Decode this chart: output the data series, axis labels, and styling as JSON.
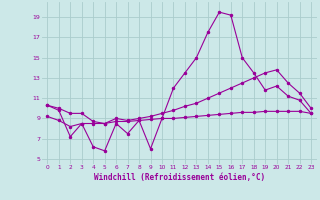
{
  "background_color": "#cce8e8",
  "grid_color": "#aacccc",
  "line_color": "#990099",
  "marker": "*",
  "xlabel": "Windchill (Refroidissement éolien,°C)",
  "xlabel_fontsize": 5.5,
  "ylabel_ticks": [
    5,
    7,
    9,
    11,
    13,
    15,
    17,
    19
  ],
  "xlim": [
    -0.5,
    23.5
  ],
  "ylim": [
    4.5,
    20.5
  ],
  "line1_x": [
    0,
    1,
    2,
    3,
    4,
    5,
    6,
    7,
    8,
    9,
    10,
    11,
    12,
    13,
    14,
    15,
    16,
    17,
    18,
    19,
    20,
    21,
    22,
    23
  ],
  "line1_y": [
    10.3,
    10.0,
    9.5,
    9.5,
    8.7,
    8.5,
    9.0,
    8.8,
    9.0,
    9.2,
    9.5,
    9.8,
    10.2,
    10.5,
    11.0,
    11.5,
    12.0,
    12.5,
    13.0,
    13.5,
    13.8,
    12.5,
    11.5,
    10.0
  ],
  "line2_x": [
    0,
    1,
    2,
    3,
    4,
    5,
    6,
    7,
    8,
    9,
    10,
    11,
    12,
    13,
    14,
    15,
    16,
    17,
    18,
    19,
    20,
    21,
    22,
    23
  ],
  "line2_y": [
    9.2,
    8.8,
    8.2,
    8.5,
    8.5,
    8.5,
    8.7,
    8.7,
    8.8,
    8.9,
    9.0,
    9.0,
    9.1,
    9.2,
    9.3,
    9.4,
    9.5,
    9.6,
    9.6,
    9.7,
    9.7,
    9.7,
    9.7,
    9.5
  ],
  "line3_x": [
    0,
    1,
    2,
    3,
    4,
    5,
    6,
    7,
    8,
    9,
    10,
    11,
    12,
    13,
    14,
    15,
    16,
    17,
    18,
    19,
    20,
    21,
    22,
    23
  ],
  "line3_y": [
    10.3,
    9.8,
    7.2,
    8.5,
    6.2,
    5.8,
    8.5,
    7.5,
    8.8,
    6.0,
    9.0,
    12.0,
    13.5,
    15.0,
    17.5,
    19.5,
    19.2,
    15.0,
    13.5,
    11.8,
    12.2,
    11.2,
    10.8,
    9.5
  ]
}
